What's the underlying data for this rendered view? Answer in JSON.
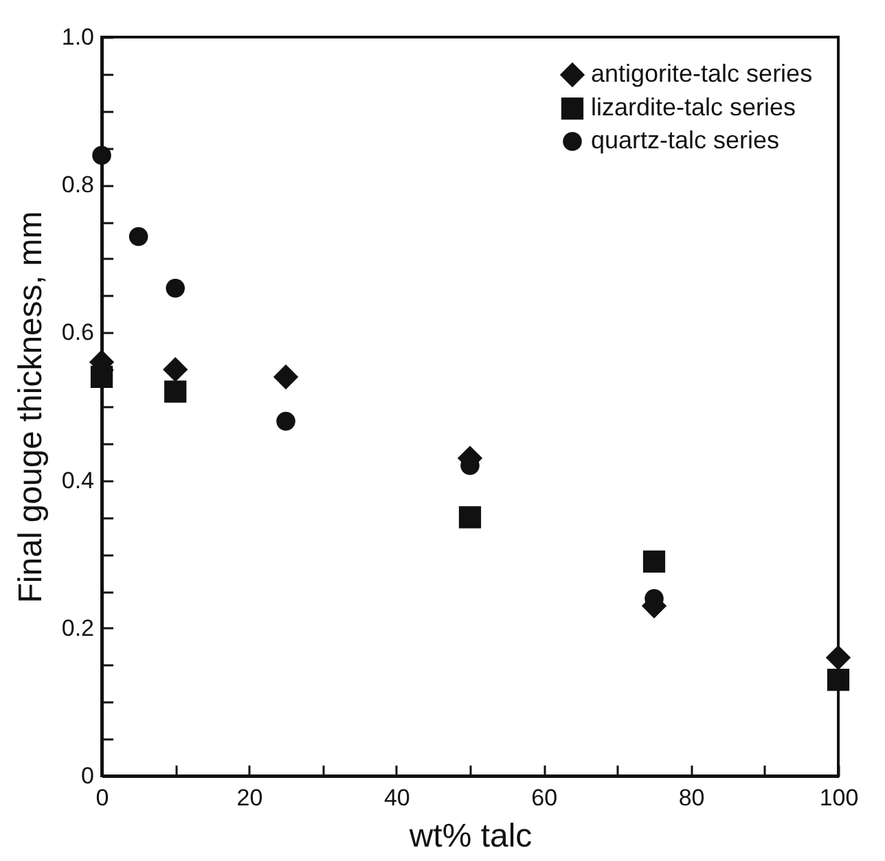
{
  "chart_data": {
    "type": "scatter",
    "xlabel": "wt% talc",
    "ylabel": "Final gouge thickness, mm",
    "xlim": [
      0,
      100
    ],
    "ylim": [
      0,
      1
    ],
    "xticks": [
      0,
      {
        "value": 10,
        "label": null
      },
      20,
      {
        "value": 30,
        "label": null
      },
      40,
      {
        "value": 50,
        "label": null
      },
      60,
      {
        "value": 70,
        "label": null
      },
      80,
      {
        "value": 90,
        "label": null
      },
      100
    ],
    "yticks": [
      0,
      {
        "value": 0.05,
        "label": null
      },
      {
        "value": 0.1,
        "label": null
      },
      {
        "value": 0.15,
        "label": null
      },
      0.2,
      {
        "value": 0.25,
        "label": null
      },
      {
        "value": 0.3,
        "label": null
      },
      {
        "value": 0.35,
        "label": null
      },
      0.4,
      {
        "value": 0.45,
        "label": null
      },
      {
        "value": 0.5,
        "label": null
      },
      {
        "value": 0.55,
        "label": null
      },
      0.6,
      {
        "value": 0.65,
        "label": null
      },
      {
        "value": 0.7,
        "label": null
      },
      {
        "value": 0.75,
        "label": null
      },
      0.8,
      {
        "value": 0.85,
        "label": null
      },
      {
        "value": 0.9,
        "label": null
      },
      {
        "value": 0.95,
        "label": null
      },
      {
        "value": 1,
        "label": "1.0"
      }
    ],
    "grid": false,
    "legend": "top right",
    "series": [
      {
        "name": "antigorite-talc series",
        "color": "#111111",
        "marker": "diamond",
        "x": [
          0,
          10,
          25,
          50,
          75,
          100
        ],
        "values": [
          0.56,
          0.55,
          0.54,
          0.43,
          0.23,
          0.16
        ]
      },
      {
        "name": "lizardite-talc series",
        "color": "#111111",
        "marker": "square",
        "x": [
          0,
          10,
          50,
          75,
          100
        ],
        "values": [
          0.54,
          0.52,
          0.35,
          0.29,
          0.13
        ]
      },
      {
        "name": "quartz-talc series",
        "color": "#111111",
        "marker": "circle",
        "x": [
          0,
          5,
          10,
          25,
          50,
          75
        ],
        "values": [
          0.84,
          0.73,
          0.66,
          0.48,
          0.42,
          0.24
        ]
      }
    ]
  }
}
